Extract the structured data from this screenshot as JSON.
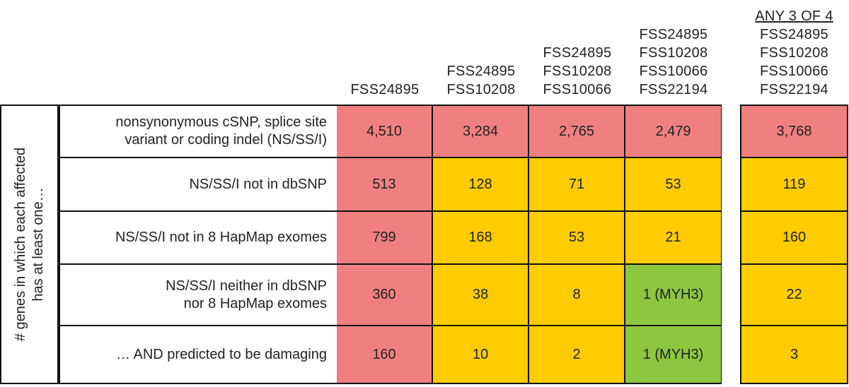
{
  "columns": [
    {
      "lines": [
        "FSS24895"
      ]
    },
    {
      "lines": [
        "FSS24895",
        "FSS10208"
      ]
    },
    {
      "lines": [
        "FSS24895",
        "FSS10208",
        "FSS10066"
      ]
    },
    {
      "lines": [
        "FSS24895",
        "FSS10208",
        "FSS10066",
        "FSS22194"
      ]
    }
  ],
  "any_column": {
    "title": "ANY 3 OF 4",
    "lines": [
      "FSS24895",
      "FSS10208",
      "FSS10066",
      "FSS22194"
    ]
  },
  "side_label": {
    "line1": "# genes in which each affected",
    "line2": "has at least one…"
  },
  "rows": [
    {
      "desc": [
        "nonsynonymous cSNP, splice site",
        "variant or coding indel (NS/SS/I)"
      ],
      "values": [
        "4,510",
        "3,284",
        "2,765",
        "2,479"
      ],
      "any": "3,768",
      "colors": [
        "red",
        "red",
        "red",
        "red"
      ],
      "any_color": "red"
    },
    {
      "desc": [
        "NS/SS/I not in dbSNP"
      ],
      "values": [
        "513",
        "128",
        "71",
        "53"
      ],
      "any": "119",
      "colors": [
        "red",
        "orange",
        "orange",
        "orange"
      ],
      "any_color": "orange"
    },
    {
      "desc": [
        "NS/SS/I not in 8 HapMap exomes"
      ],
      "values": [
        "799",
        "168",
        "53",
        "21"
      ],
      "any": "160",
      "colors": [
        "red",
        "orange",
        "orange",
        "orange"
      ],
      "any_color": "orange"
    },
    {
      "desc": [
        "NS/SS/I neither in dbSNP",
        "nor 8 HapMap exomes"
      ],
      "values": [
        "360",
        "38",
        "8",
        "1 (MYH3)"
      ],
      "any": "22",
      "colors": [
        "red",
        "orange",
        "orange",
        "green"
      ],
      "any_color": "orange"
    },
    {
      "desc": [
        "… AND predicted to be damaging"
      ],
      "values": [
        "160",
        "10",
        "2",
        "1 (MYH3)"
      ],
      "any": "3",
      "colors": [
        "red",
        "orange",
        "orange",
        "green"
      ],
      "any_color": "orange"
    }
  ]
}
